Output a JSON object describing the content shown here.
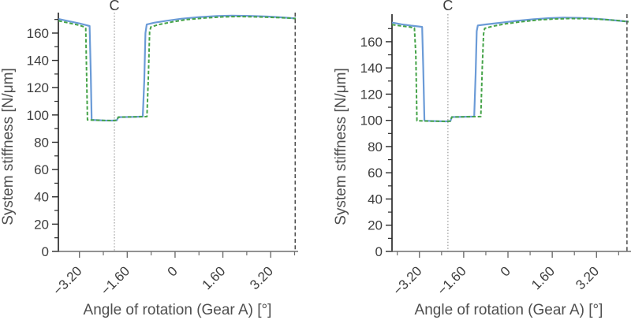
{
  "colors": {
    "series_blue": "#6b9bd7",
    "series_green": "#45a348",
    "c_line": "#9a9a9a",
    "boundary_line": "#4d4d4d",
    "y_axis": "#2b2b2b",
    "x_axis": "#6e6e6e",
    "tick_label": "#3d3d3d",
    "axis_title": "#4f4f4f",
    "background": "#ffffff"
  },
  "chart_data": [
    {
      "type": "line",
      "title": "",
      "xlabel": "Angle of rotation (Gear A) [°]",
      "ylabel": "System stiffness [N/μm]",
      "xlim": [
        -3.905,
        4.04
      ],
      "ylim": [
        0,
        175
      ],
      "grid": false,
      "legend": null,
      "x_major_ticks": [
        -3.2,
        -1.6,
        0,
        1.6,
        3.2
      ],
      "x_tick_labels": [
        "−3.20",
        "−1.60",
        "0",
        "1.60",
        "3.20"
      ],
      "x_minor_ticks": [
        -2.4,
        -0.8,
        0.8,
        2.4,
        4.0
      ],
      "y_major_ticks": [
        0,
        20,
        40,
        60,
        80,
        100,
        120,
        140,
        160
      ],
      "y_minor_ticks": [
        10,
        30,
        50,
        70,
        90,
        110,
        130,
        150,
        170
      ],
      "annotation_vline": {
        "label": "C",
        "x": -2.03,
        "style": "dotted"
      },
      "boundary_vline": {
        "x": 4.02,
        "style": "dashed"
      },
      "series": [
        {
          "name": "system-stiffness-solid",
          "color_key": "series_blue",
          "line_style": "solid",
          "points": [
            [
              -3.9,
              170.3
            ],
            [
              -3.55,
              168.7
            ],
            [
              -3.2,
              167.1
            ],
            [
              -2.98,
              165.9
            ],
            [
              -2.86,
              165.2
            ],
            [
              -2.82,
              130
            ],
            [
              -2.79,
              96.4
            ],
            [
              -2.4,
              96.0
            ],
            [
              -2.1,
              95.9
            ],
            [
              -1.95,
              96.1
            ],
            [
              -1.9,
              98.4
            ],
            [
              -1.4,
              98.6
            ],
            [
              -1.08,
              98.8
            ],
            [
              -1.03,
              125
            ],
            [
              -0.99,
              160
            ],
            [
              -0.95,
              166.3
            ],
            [
              -0.7,
              167.6
            ],
            [
              -0.3,
              169.0
            ],
            [
              0.2,
              170.5
            ],
            [
              0.8,
              171.7
            ],
            [
              1.4,
              172.5
            ],
            [
              1.9,
              172.8
            ],
            [
              2.5,
              172.6
            ],
            [
              3.1,
              172.1
            ],
            [
              3.6,
              171.5
            ],
            [
              4.04,
              170.7
            ]
          ]
        },
        {
          "name": "system-stiffness-dashed",
          "color_key": "series_green",
          "line_style": "dashed",
          "points": [
            [
              -3.9,
              169.0
            ],
            [
              -3.55,
              167.4
            ],
            [
              -3.2,
              165.7
            ],
            [
              -3.05,
              164.6
            ],
            [
              -2.99,
              163.5
            ],
            [
              -2.96,
              130
            ],
            [
              -2.93,
              96.4
            ],
            [
              -2.4,
              96.0
            ],
            [
              -2.1,
              95.9
            ],
            [
              -1.95,
              96.1
            ],
            [
              -1.9,
              98.4
            ],
            [
              -1.4,
              98.6
            ],
            [
              -0.94,
              98.8
            ],
            [
              -0.89,
              130
            ],
            [
              -0.85,
              161
            ],
            [
              -0.81,
              164.5
            ],
            [
              -0.55,
              166.2
            ],
            [
              -0.1,
              168.2
            ],
            [
              0.4,
              169.9
            ],
            [
              1.0,
              171.1
            ],
            [
              1.6,
              171.9
            ],
            [
              2.1,
              172.1
            ],
            [
              2.7,
              171.9
            ],
            [
              3.3,
              171.5
            ],
            [
              3.8,
              171.0
            ],
            [
              4.04,
              170.6
            ]
          ]
        }
      ]
    },
    {
      "type": "line",
      "title": "",
      "xlabel": "Angle of rotation (Gear A) [°]",
      "ylabel": "System stiffness [N/μm]",
      "xlim": [
        -4.19,
        4.36
      ],
      "ylim": [
        0,
        181
      ],
      "grid": false,
      "legend": null,
      "x_major_ticks": [
        -3.2,
        -1.6,
        0,
        1.6,
        3.2
      ],
      "x_tick_labels": [
        "−3.20",
        "−1.60",
        "0",
        "1.60",
        "3.20"
      ],
      "x_minor_ticks": [
        -4.0,
        -2.4,
        -0.8,
        0.8,
        2.4,
        4.0
      ],
      "y_major_ticks": [
        0,
        20,
        40,
        60,
        80,
        100,
        120,
        140,
        160
      ],
      "y_minor_ticks": [
        10,
        30,
        50,
        70,
        90,
        110,
        130,
        150,
        170
      ],
      "annotation_vline": {
        "label": "C",
        "x": -2.17,
        "style": "dotted"
      },
      "boundary_vline": {
        "x": 4.3,
        "style": "dashed"
      },
      "series": [
        {
          "name": "system-stiffness-solid",
          "color_key": "series_blue",
          "line_style": "solid",
          "points": [
            [
              -4.19,
              174.6
            ],
            [
              -3.85,
              173.3
            ],
            [
              -3.5,
              172.3
            ],
            [
              -3.25,
              171.7
            ],
            [
              -3.1,
              171.3
            ],
            [
              -3.06,
              140
            ],
            [
              -3.02,
              99.7
            ],
            [
              -2.6,
              99.4
            ],
            [
              -2.25,
              99.2
            ],
            [
              -2.08,
              99.4
            ],
            [
              -2.03,
              102.5
            ],
            [
              -1.6,
              102.7
            ],
            [
              -1.22,
              102.9
            ],
            [
              -1.17,
              135
            ],
            [
              -1.13,
              168
            ],
            [
              -1.09,
              172.4
            ],
            [
              -0.8,
              173.2
            ],
            [
              -0.3,
              174.4
            ],
            [
              0.3,
              175.9
            ],
            [
              0.9,
              177.1
            ],
            [
              1.5,
              178.0
            ],
            [
              2.0,
              178.4
            ],
            [
              2.6,
              178.2
            ],
            [
              3.2,
              177.5
            ],
            [
              3.8,
              176.4
            ],
            [
              4.36,
              175.3
            ]
          ]
        },
        {
          "name": "system-stiffness-dashed",
          "color_key": "series_green",
          "line_style": "dashed",
          "points": [
            [
              -4.19,
              173.0
            ],
            [
              -3.85,
              172.0
            ],
            [
              -3.55,
              171.2
            ],
            [
              -3.38,
              170.4
            ],
            [
              -3.33,
              150
            ],
            [
              -3.29,
              99.7
            ],
            [
              -2.8,
              99.4
            ],
            [
              -2.25,
              99.2
            ],
            [
              -2.08,
              99.4
            ],
            [
              -2.03,
              102.5
            ],
            [
              -1.6,
              102.7
            ],
            [
              -0.98,
              102.9
            ],
            [
              -0.93,
              140
            ],
            [
              -0.88,
              166
            ],
            [
              -0.84,
              170.2
            ],
            [
              -0.55,
              171.8
            ],
            [
              -0.1,
              173.6
            ],
            [
              0.5,
              175.3
            ],
            [
              1.1,
              176.6
            ],
            [
              1.7,
              177.4
            ],
            [
              2.3,
              177.7
            ],
            [
              2.9,
              177.5
            ],
            [
              3.5,
              176.9
            ],
            [
              4.0,
              176.1
            ],
            [
              4.36,
              175.2
            ]
          ]
        }
      ]
    }
  ]
}
